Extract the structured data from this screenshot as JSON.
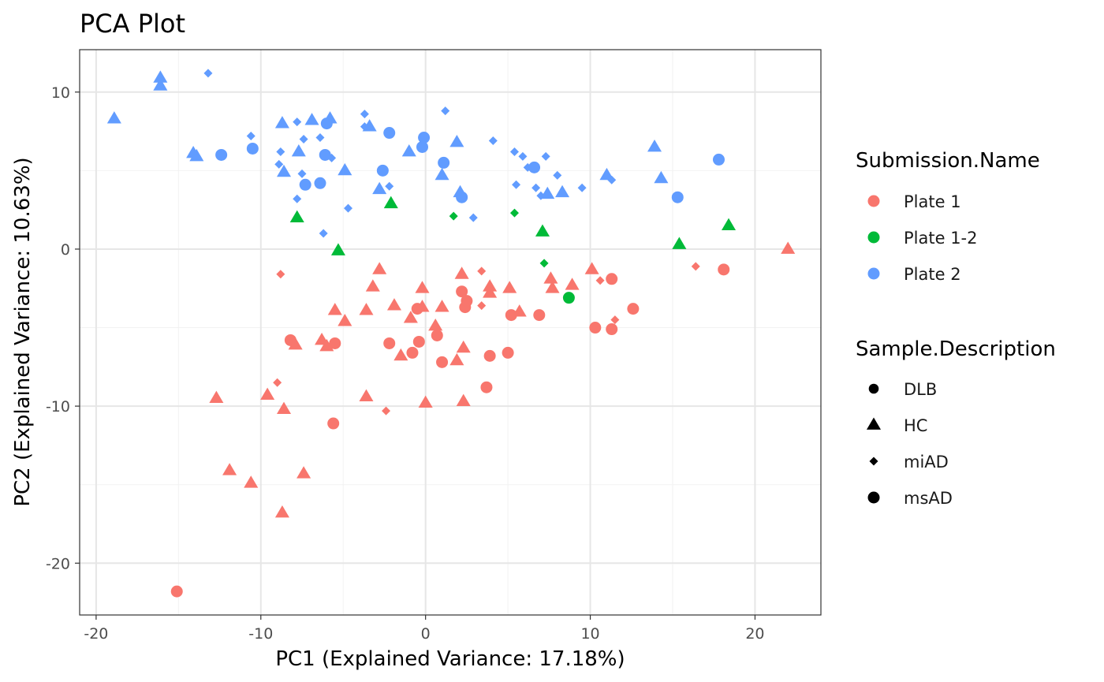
{
  "chart_data": {
    "type": "scatter",
    "title": "PCA Plot",
    "xlabel": "PC1 (Explained Variance: 17.18%)",
    "ylabel": "PC2 (Explained Variance: 10.63%)",
    "xlim": [
      -21,
      24
    ],
    "ylim": [
      -23.3,
      12.7
    ],
    "x_ticks": [
      -20,
      -10,
      0,
      10,
      20
    ],
    "y_ticks": [
      -20,
      -10,
      0,
      10
    ],
    "grid": true,
    "legend_position": "right",
    "color_legend": {
      "title": "Submission.Name",
      "entries": [
        {
          "label": "Plate 1",
          "color": "#F8766D"
        },
        {
          "label": "Plate 1-2",
          "color": "#00BA38"
        },
        {
          "label": "Plate 2",
          "color": "#619CFF"
        }
      ]
    },
    "shape_legend": {
      "title": "Sample.Description",
      "entries": [
        {
          "label": "DLB",
          "shape": "circle-small"
        },
        {
          "label": "HC",
          "shape": "triangle"
        },
        {
          "label": "miAD",
          "shape": "diamond"
        },
        {
          "label": "msAD",
          "shape": "circle"
        }
      ]
    },
    "series": [
      {
        "name": "Plate 2",
        "color": "#619CFF",
        "points": [
          {
            "x": -18.9,
            "y": 8.3,
            "shape": "triangle"
          },
          {
            "x": -16.1,
            "y": 10.9,
            "shape": "triangle"
          },
          {
            "x": -16.1,
            "y": 10.4,
            "shape": "triangle"
          },
          {
            "x": -13.2,
            "y": 11.2,
            "shape": "diamond"
          },
          {
            "x": -14.1,
            "y": 6.1,
            "shape": "triangle"
          },
          {
            "x": -13.9,
            "y": 5.9,
            "shape": "triangle"
          },
          {
            "x": -12.4,
            "y": 6.0,
            "shape": "circle"
          },
          {
            "x": -10.6,
            "y": 7.2,
            "shape": "diamond"
          },
          {
            "x": -10.5,
            "y": 6.4,
            "shape": "circle"
          },
          {
            "x": -8.9,
            "y": 5.4,
            "shape": "diamond"
          },
          {
            "x": -8.8,
            "y": 6.2,
            "shape": "diamond"
          },
          {
            "x": -8.7,
            "y": 8.0,
            "shape": "triangle"
          },
          {
            "x": -8.6,
            "y": 4.9,
            "shape": "triangle"
          },
          {
            "x": -7.8,
            "y": 8.1,
            "shape": "diamond"
          },
          {
            "x": -7.7,
            "y": 6.2,
            "shape": "triangle"
          },
          {
            "x": -7.5,
            "y": 4.8,
            "shape": "diamond"
          },
          {
            "x": -7.4,
            "y": 7.0,
            "shape": "diamond"
          },
          {
            "x": -7.3,
            "y": 4.1,
            "shape": "circle"
          },
          {
            "x": -7.8,
            "y": 3.2,
            "shape": "diamond"
          },
          {
            "x": -6.9,
            "y": 8.2,
            "shape": "triangle"
          },
          {
            "x": -6.4,
            "y": 7.1,
            "shape": "diamond"
          },
          {
            "x": -6.4,
            "y": 4.2,
            "shape": "circle"
          },
          {
            "x": -6.2,
            "y": 1.0,
            "shape": "diamond"
          },
          {
            "x": -6.1,
            "y": 6.0,
            "shape": "circle"
          },
          {
            "x": -6.0,
            "y": 8.0,
            "shape": "circle"
          },
          {
            "x": -5.8,
            "y": 8.3,
            "shape": "triangle"
          },
          {
            "x": -5.7,
            "y": 5.8,
            "shape": "diamond"
          },
          {
            "x": -4.9,
            "y": 5.0,
            "shape": "triangle"
          },
          {
            "x": -4.7,
            "y": 2.6,
            "shape": "diamond"
          },
          {
            "x": -3.7,
            "y": 8.6,
            "shape": "diamond"
          },
          {
            "x": -3.7,
            "y": 7.8,
            "shape": "diamond"
          },
          {
            "x": -3.4,
            "y": 7.8,
            "shape": "triangle"
          },
          {
            "x": -2.8,
            "y": 3.8,
            "shape": "triangle"
          },
          {
            "x": -2.6,
            "y": 5.0,
            "shape": "circle"
          },
          {
            "x": -2.2,
            "y": 7.4,
            "shape": "circle"
          },
          {
            "x": -2.2,
            "y": 4.0,
            "shape": "diamond"
          },
          {
            "x": -1.0,
            "y": 6.2,
            "shape": "triangle"
          },
          {
            "x": -0.2,
            "y": 6.5,
            "shape": "circle"
          },
          {
            "x": -0.1,
            "y": 7.1,
            "shape": "circle"
          },
          {
            "x": 1.0,
            "y": 4.7,
            "shape": "triangle"
          },
          {
            "x": 1.1,
            "y": 5.5,
            "shape": "circle"
          },
          {
            "x": 1.2,
            "y": 8.8,
            "shape": "diamond"
          },
          {
            "x": 1.9,
            "y": 6.8,
            "shape": "triangle"
          },
          {
            "x": 2.1,
            "y": 3.6,
            "shape": "triangle"
          },
          {
            "x": 2.2,
            "y": 3.3,
            "shape": "circle"
          },
          {
            "x": 2.9,
            "y": 2.0,
            "shape": "diamond"
          },
          {
            "x": 4.1,
            "y": 6.9,
            "shape": "diamond"
          },
          {
            "x": 5.4,
            "y": 6.2,
            "shape": "diamond"
          },
          {
            "x": 5.5,
            "y": 4.1,
            "shape": "diamond"
          },
          {
            "x": 5.9,
            "y": 5.9,
            "shape": "diamond"
          },
          {
            "x": 6.2,
            "y": 5.2,
            "shape": "diamond"
          },
          {
            "x": 6.6,
            "y": 5.2,
            "shape": "circle"
          },
          {
            "x": 6.7,
            "y": 3.9,
            "shape": "diamond"
          },
          {
            "x": 7.0,
            "y": 3.4,
            "shape": "diamond"
          },
          {
            "x": 7.3,
            "y": 5.9,
            "shape": "diamond"
          },
          {
            "x": 7.4,
            "y": 3.5,
            "shape": "triangle"
          },
          {
            "x": 8.0,
            "y": 4.7,
            "shape": "diamond"
          },
          {
            "x": 8.3,
            "y": 3.6,
            "shape": "triangle"
          },
          {
            "x": 9.5,
            "y": 3.9,
            "shape": "diamond"
          },
          {
            "x": 11.0,
            "y": 4.7,
            "shape": "triangle"
          },
          {
            "x": 11.3,
            "y": 4.4,
            "shape": "diamond"
          },
          {
            "x": 13.9,
            "y": 6.5,
            "shape": "triangle"
          },
          {
            "x": 14.3,
            "y": 4.5,
            "shape": "triangle"
          },
          {
            "x": 15.3,
            "y": 3.3,
            "shape": "circle"
          },
          {
            "x": 17.8,
            "y": 5.7,
            "shape": "circle"
          }
        ]
      },
      {
        "name": "Plate 1-2",
        "color": "#00BA38",
        "points": [
          {
            "x": -7.8,
            "y": 2.0,
            "shape": "triangle"
          },
          {
            "x": -5.3,
            "y": -0.1,
            "shape": "triangle"
          },
          {
            "x": -2.1,
            "y": 2.9,
            "shape": "triangle"
          },
          {
            "x": 1.7,
            "y": 2.1,
            "shape": "diamond"
          },
          {
            "x": 5.4,
            "y": 2.3,
            "shape": "diamond"
          },
          {
            "x": 7.1,
            "y": 1.1,
            "shape": "triangle"
          },
          {
            "x": 7.2,
            "y": -0.9,
            "shape": "diamond"
          },
          {
            "x": 8.7,
            "y": -3.1,
            "shape": "circle"
          },
          {
            "x": 15.4,
            "y": 0.3,
            "shape": "triangle"
          },
          {
            "x": 18.4,
            "y": 1.5,
            "shape": "triangle"
          }
        ]
      },
      {
        "name": "Plate 1",
        "color": "#F8766D",
        "points": [
          {
            "x": -15.1,
            "y": -21.8,
            "shape": "circle"
          },
          {
            "x": -12.7,
            "y": -9.5,
            "shape": "triangle"
          },
          {
            "x": -11.9,
            "y": -14.1,
            "shape": "triangle"
          },
          {
            "x": -10.6,
            "y": -14.9,
            "shape": "triangle"
          },
          {
            "x": -9.6,
            "y": -9.3,
            "shape": "triangle"
          },
          {
            "x": -9.0,
            "y": -8.5,
            "shape": "diamond"
          },
          {
            "x": -8.8,
            "y": -1.6,
            "shape": "diamond"
          },
          {
            "x": -8.7,
            "y": -16.8,
            "shape": "triangle"
          },
          {
            "x": -8.6,
            "y": -10.2,
            "shape": "triangle"
          },
          {
            "x": -8.2,
            "y": -5.8,
            "shape": "circle"
          },
          {
            "x": -7.9,
            "y": -6.1,
            "shape": "triangle"
          },
          {
            "x": -7.4,
            "y": -14.3,
            "shape": "triangle"
          },
          {
            "x": -6.3,
            "y": -5.8,
            "shape": "triangle"
          },
          {
            "x": -6.0,
            "y": -6.2,
            "shape": "triangle"
          },
          {
            "x": -5.6,
            "y": -11.1,
            "shape": "circle"
          },
          {
            "x": -5.5,
            "y": -6.0,
            "shape": "circle"
          },
          {
            "x": -5.5,
            "y": -3.9,
            "shape": "triangle"
          },
          {
            "x": -4.9,
            "y": -4.6,
            "shape": "triangle"
          },
          {
            "x": -3.6,
            "y": -9.4,
            "shape": "triangle"
          },
          {
            "x": -3.6,
            "y": -3.9,
            "shape": "triangle"
          },
          {
            "x": -3.2,
            "y": -2.4,
            "shape": "triangle"
          },
          {
            "x": -2.8,
            "y": -1.3,
            "shape": "triangle"
          },
          {
            "x": -2.4,
            "y": -10.3,
            "shape": "diamond"
          },
          {
            "x": -2.2,
            "y": -6.0,
            "shape": "circle"
          },
          {
            "x": -1.9,
            "y": -3.6,
            "shape": "triangle"
          },
          {
            "x": -1.5,
            "y": -6.8,
            "shape": "triangle"
          },
          {
            "x": -0.9,
            "y": -4.4,
            "shape": "triangle"
          },
          {
            "x": -0.8,
            "y": -6.6,
            "shape": "circle"
          },
          {
            "x": -0.5,
            "y": -3.8,
            "shape": "circle"
          },
          {
            "x": -0.4,
            "y": -5.9,
            "shape": "circle"
          },
          {
            "x": -0.2,
            "y": -2.5,
            "shape": "triangle"
          },
          {
            "x": -0.2,
            "y": -3.7,
            "shape": "triangle"
          },
          {
            "x": 0.0,
            "y": -9.8,
            "shape": "triangle"
          },
          {
            "x": 0.6,
            "y": -4.9,
            "shape": "triangle"
          },
          {
            "x": 0.7,
            "y": -5.5,
            "shape": "circle"
          },
          {
            "x": 1.0,
            "y": -7.2,
            "shape": "circle"
          },
          {
            "x": 1.0,
            "y": -3.7,
            "shape": "triangle"
          },
          {
            "x": 1.9,
            "y": -7.1,
            "shape": "triangle"
          },
          {
            "x": 2.2,
            "y": -1.6,
            "shape": "triangle"
          },
          {
            "x": 2.2,
            "y": -2.7,
            "shape": "circle"
          },
          {
            "x": 2.3,
            "y": -9.7,
            "shape": "triangle"
          },
          {
            "x": 2.3,
            "y": -6.3,
            "shape": "triangle"
          },
          {
            "x": 2.4,
            "y": -3.7,
            "shape": "circle"
          },
          {
            "x": 2.5,
            "y": -3.3,
            "shape": "circle"
          },
          {
            "x": 3.4,
            "y": -3.6,
            "shape": "diamond"
          },
          {
            "x": 3.4,
            "y": -1.4,
            "shape": "diamond"
          },
          {
            "x": 3.7,
            "y": -8.8,
            "shape": "circle"
          },
          {
            "x": 3.9,
            "y": -2.4,
            "shape": "triangle"
          },
          {
            "x": 3.9,
            "y": -2.8,
            "shape": "triangle"
          },
          {
            "x": 3.9,
            "y": -6.8,
            "shape": "circle"
          },
          {
            "x": 5.0,
            "y": -6.6,
            "shape": "circle"
          },
          {
            "x": 5.1,
            "y": -2.5,
            "shape": "triangle"
          },
          {
            "x": 5.2,
            "y": -4.2,
            "shape": "circle"
          },
          {
            "x": 5.7,
            "y": -4.0,
            "shape": "triangle"
          },
          {
            "x": 6.9,
            "y": -4.2,
            "shape": "circle"
          },
          {
            "x": 7.6,
            "y": -1.9,
            "shape": "triangle"
          },
          {
            "x": 7.7,
            "y": -2.5,
            "shape": "triangle"
          },
          {
            "x": 8.9,
            "y": -2.3,
            "shape": "triangle"
          },
          {
            "x": 10.1,
            "y": -1.3,
            "shape": "triangle"
          },
          {
            "x": 10.3,
            "y": -5.0,
            "shape": "circle"
          },
          {
            "x": 10.6,
            "y": -2.0,
            "shape": "diamond"
          },
          {
            "x": 11.3,
            "y": -1.9,
            "shape": "circle"
          },
          {
            "x": 11.3,
            "y": -5.1,
            "shape": "circle"
          },
          {
            "x": 11.5,
            "y": -4.5,
            "shape": "diamond"
          },
          {
            "x": 12.6,
            "y": -3.8,
            "shape": "circle"
          },
          {
            "x": 16.4,
            "y": -1.1,
            "shape": "diamond"
          },
          {
            "x": 18.1,
            "y": -1.3,
            "shape": "circle"
          },
          {
            "x": 22.0,
            "y": 0.0,
            "shape": "triangle"
          }
        ]
      }
    ]
  }
}
